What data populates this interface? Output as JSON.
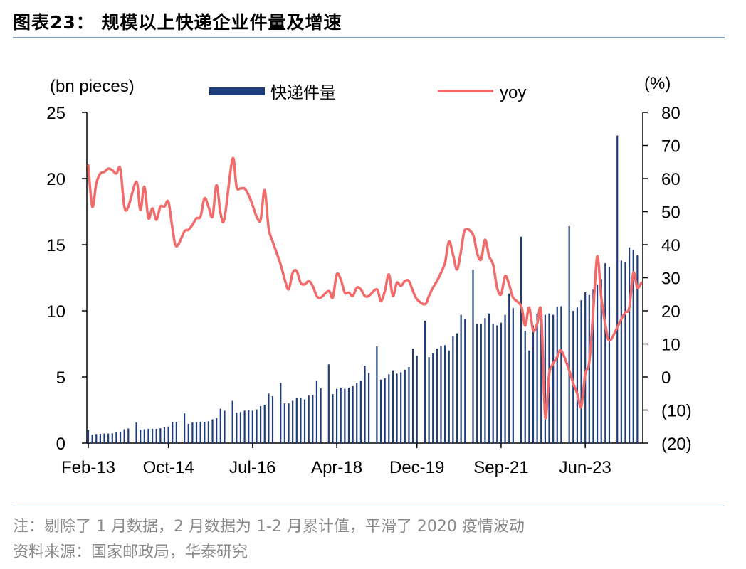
{
  "header": {
    "title": "图表23：   规模以上快递企业件量及增速"
  },
  "notes": {
    "note": "注：剔除了 1 月数据，2 月数据为 1-2 月累计值，平滑了 2020 疫情波动",
    "source": "资料来源：国家邮政局，华泰研究"
  },
  "colors": {
    "bar": "#1f3c7a",
    "line": "#f26b6b",
    "rule": "#7f9bb5"
  },
  "chart_data": {
    "type": "bar+line",
    "left_unit": "(bn pieces)",
    "right_unit": "(%)",
    "left_ylim": [
      0,
      25
    ],
    "right_ylim": [
      -20,
      80
    ],
    "left_ticks": [
      "0",
      "5",
      "10",
      "15",
      "20",
      "25"
    ],
    "right_ticks": [
      "(20)",
      "(10)",
      "0",
      "10",
      "20",
      "30",
      "40",
      "50",
      "60",
      "70",
      "80"
    ],
    "x_tick_labels": [
      "Feb-13",
      "Oct-14",
      "Jul-16",
      "Apr-18",
      "Dec-19",
      "Sep-21",
      "Jun-23"
    ],
    "x_tick_months": [
      "2013-02",
      "2014-10",
      "2016-07",
      "2018-04",
      "2019-12",
      "2021-09",
      "2023-06"
    ],
    "x_range": [
      "2013-02",
      "2024-08"
    ],
    "legend": {
      "position": "top",
      "bar_label": "快递件量",
      "line_label": "yoy"
    },
    "series": [
      {
        "name": "快递件量",
        "kind": "bar",
        "axis": "left",
        "values": [
          [
            "2013-02",
            1.0
          ],
          [
            "2013-03",
            0.65
          ],
          [
            "2013-04",
            0.68
          ],
          [
            "2013-05",
            0.7
          ],
          [
            "2013-06",
            0.72
          ],
          [
            "2013-07",
            0.72
          ],
          [
            "2013-08",
            0.74
          ],
          [
            "2013-09",
            0.8
          ],
          [
            "2013-10",
            0.85
          ],
          [
            "2013-11",
            1.05
          ],
          [
            "2013-12",
            1.1
          ],
          [
            "2014-02",
            1.55
          ],
          [
            "2014-03",
            1.0
          ],
          [
            "2014-04",
            1.05
          ],
          [
            "2014-05",
            1.08
          ],
          [
            "2014-06",
            1.08
          ],
          [
            "2014-07",
            1.08
          ],
          [
            "2014-08",
            1.12
          ],
          [
            "2014-09",
            1.2
          ],
          [
            "2014-10",
            1.25
          ],
          [
            "2014-11",
            1.6
          ],
          [
            "2014-12",
            1.6
          ],
          [
            "2015-02",
            2.25
          ],
          [
            "2015-03",
            1.45
          ],
          [
            "2015-04",
            1.55
          ],
          [
            "2015-05",
            1.58
          ],
          [
            "2015-06",
            1.6
          ],
          [
            "2015-07",
            1.6
          ],
          [
            "2015-08",
            1.65
          ],
          [
            "2015-09",
            1.8
          ],
          [
            "2015-10",
            1.9
          ],
          [
            "2015-11",
            2.6
          ],
          [
            "2015-12",
            2.45
          ],
          [
            "2016-02",
            3.2
          ],
          [
            "2016-03",
            2.3
          ],
          [
            "2016-04",
            2.35
          ],
          [
            "2016-05",
            2.45
          ],
          [
            "2016-06",
            2.5
          ],
          [
            "2016-07",
            2.45
          ],
          [
            "2016-08",
            2.55
          ],
          [
            "2016-09",
            2.8
          ],
          [
            "2016-10",
            2.9
          ],
          [
            "2016-11",
            3.75
          ],
          [
            "2016-12",
            3.55
          ],
          [
            "2017-02",
            4.55
          ],
          [
            "2017-03",
            3.0
          ],
          [
            "2017-04",
            3.0
          ],
          [
            "2017-05",
            3.2
          ],
          [
            "2017-06",
            3.4
          ],
          [
            "2017-07",
            3.4
          ],
          [
            "2017-08",
            3.3
          ],
          [
            "2017-09",
            3.6
          ],
          [
            "2017-10",
            3.65
          ],
          [
            "2017-11",
            4.7
          ],
          [
            "2017-12",
            4.15
          ],
          [
            "2018-02",
            5.95
          ],
          [
            "2018-03",
            3.7
          ],
          [
            "2018-04",
            4.1
          ],
          [
            "2018-05",
            4.2
          ],
          [
            "2018-06",
            4.1
          ],
          [
            "2018-07",
            4.2
          ],
          [
            "2018-08",
            4.3
          ],
          [
            "2018-09",
            4.55
          ],
          [
            "2018-10",
            4.7
          ],
          [
            "2018-11",
            5.85
          ],
          [
            "2018-12",
            5.3
          ],
          [
            "2019-02",
            7.3
          ],
          [
            "2019-03",
            4.8
          ],
          [
            "2019-04",
            4.9
          ],
          [
            "2019-05",
            5.2
          ],
          [
            "2019-06",
            5.5
          ],
          [
            "2019-07",
            5.25
          ],
          [
            "2019-08",
            5.35
          ],
          [
            "2019-09",
            5.55
          ],
          [
            "2019-10",
            5.75
          ],
          [
            "2019-11",
            7.15
          ],
          [
            "2019-12",
            6.6
          ],
          [
            "2020-02",
            9.25
          ],
          [
            "2020-03",
            6.5
          ],
          [
            "2020-04",
            6.8
          ],
          [
            "2020-05",
            7.15
          ],
          [
            "2020-06",
            7.35
          ],
          [
            "2020-07",
            7.4
          ],
          [
            "2020-08",
            7.0
          ],
          [
            "2020-09",
            8.1
          ],
          [
            "2020-10",
            8.3
          ],
          [
            "2020-11",
            9.7
          ],
          [
            "2020-12",
            9.4
          ],
          [
            "2021-02",
            13.1
          ],
          [
            "2021-03",
            9.0
          ],
          [
            "2021-04",
            9.0
          ],
          [
            "2021-05",
            9.45
          ],
          [
            "2021-06",
            9.8
          ],
          [
            "2021-07",
            9.0
          ],
          [
            "2021-08",
            8.9
          ],
          [
            "2021-09",
            9.1
          ],
          [
            "2021-10",
            9.7
          ],
          [
            "2021-11",
            11.3
          ],
          [
            "2021-12",
            10.2
          ],
          [
            "2022-02",
            15.6
          ],
          [
            "2022-03",
            8.5
          ],
          [
            "2022-04",
            7.0
          ],
          [
            "2022-05",
            8.9
          ],
          [
            "2022-06",
            9.8
          ],
          [
            "2022-07",
            10.25
          ],
          [
            "2022-08",
            9.7
          ],
          [
            "2022-09",
            9.8
          ],
          [
            "2022-10",
            9.7
          ],
          [
            "2022-11",
            10.3
          ],
          [
            "2022-12",
            10.35
          ],
          [
            "2023-02",
            16.4
          ],
          [
            "2023-03",
            10.0
          ],
          [
            "2023-04",
            10.25
          ],
          [
            "2023-05",
            10.8
          ],
          [
            "2023-06",
            11.4
          ],
          [
            "2023-07",
            11.2
          ],
          [
            "2023-08",
            11.6
          ],
          [
            "2023-09",
            12.0
          ],
          [
            "2023-10",
            12.4
          ],
          [
            "2023-11",
            13.6
          ],
          [
            "2023-12",
            13.3
          ],
          [
            "2024-02",
            23.25
          ],
          [
            "2024-03",
            13.8
          ],
          [
            "2024-04",
            13.7
          ],
          [
            "2024-05",
            14.8
          ],
          [
            "2024-06",
            14.6
          ],
          [
            "2024-07",
            14.2
          ]
        ]
      },
      {
        "name": "yoy",
        "kind": "line",
        "axis": "right",
        "values": [
          [
            "2013-02",
            64
          ],
          [
            "2013-03",
            51.5
          ],
          [
            "2013-04",
            58.5
          ],
          [
            "2013-05",
            61.5
          ],
          [
            "2013-06",
            62
          ],
          [
            "2013-07",
            63
          ],
          [
            "2013-08",
            62.5
          ],
          [
            "2013-09",
            61.5
          ],
          [
            "2013-10",
            63
          ],
          [
            "2013-11",
            51.5
          ],
          [
            "2013-12",
            51.5
          ],
          [
            "2014-02",
            59
          ],
          [
            "2014-03",
            50.5
          ],
          [
            "2014-04",
            57.5
          ],
          [
            "2014-05",
            48
          ],
          [
            "2014-06",
            51
          ],
          [
            "2014-07",
            47.5
          ],
          [
            "2014-08",
            51.5
          ],
          [
            "2014-09",
            51.5
          ],
          [
            "2014-10",
            53
          ],
          [
            "2014-11",
            45
          ],
          [
            "2014-12",
            39.5
          ],
          [
            "2015-02",
            44
          ],
          [
            "2015-03",
            44.5
          ],
          [
            "2015-04",
            46
          ],
          [
            "2015-05",
            48
          ],
          [
            "2015-06",
            48.5
          ],
          [
            "2015-07",
            54
          ],
          [
            "2015-08",
            51.5
          ],
          [
            "2015-09",
            48.5
          ],
          [
            "2015-10",
            58
          ],
          [
            "2015-11",
            49.5
          ],
          [
            "2015-12",
            48
          ],
          [
            "2016-02",
            66
          ],
          [
            "2016-03",
            57.5
          ],
          [
            "2016-04",
            57
          ],
          [
            "2016-05",
            57
          ],
          [
            "2016-06",
            55
          ],
          [
            "2016-07",
            52
          ],
          [
            "2016-08",
            48.5
          ],
          [
            "2016-09",
            47.5
          ],
          [
            "2016-10",
            56.5
          ],
          [
            "2016-11",
            45
          ],
          [
            "2016-12",
            41
          ],
          [
            "2017-02",
            34
          ],
          [
            "2017-03",
            29.5
          ],
          [
            "2017-04",
            26.5
          ],
          [
            "2017-05",
            31.5
          ],
          [
            "2017-06",
            32
          ],
          [
            "2017-07",
            28.5
          ],
          [
            "2017-08",
            28
          ],
          [
            "2017-09",
            29
          ],
          [
            "2017-10",
            27.5
          ],
          [
            "2017-11",
            24.5
          ],
          [
            "2017-12",
            24
          ],
          [
            "2018-02",
            26
          ],
          [
            "2018-03",
            24
          ],
          [
            "2018-04",
            31
          ],
          [
            "2018-05",
            29.5
          ],
          [
            "2018-06",
            25.5
          ],
          [
            "2018-07",
            25.5
          ],
          [
            "2018-08",
            24.5
          ],
          [
            "2018-09",
            27
          ],
          [
            "2018-10",
            26.5
          ],
          [
            "2018-11",
            24.5
          ],
          [
            "2018-12",
            24.5
          ],
          [
            "2019-02",
            26.5
          ],
          [
            "2019-03",
            23
          ],
          [
            "2019-04",
            26
          ],
          [
            "2019-05",
            31
          ],
          [
            "2019-06",
            24.5
          ],
          [
            "2019-07",
            28.5
          ],
          [
            "2019-08",
            27.5
          ],
          [
            "2019-09",
            29
          ],
          [
            "2019-10",
            29
          ],
          [
            "2019-11",
            26
          ],
          [
            "2019-12",
            23.5
          ],
          [
            "2020-02",
            22
          ],
          [
            "2020-03",
            24.5
          ],
          [
            "2020-04",
            27
          ],
          [
            "2020-05",
            29
          ],
          [
            "2020-06",
            31.5
          ],
          [
            "2020-07",
            34.5
          ],
          [
            "2020-08",
            41
          ],
          [
            "2020-09",
            37
          ],
          [
            "2020-10",
            32.5
          ],
          [
            "2020-11",
            38
          ],
          [
            "2020-12",
            44.5
          ],
          [
            "2021-02",
            43
          ],
          [
            "2021-03",
            37.5
          ],
          [
            "2021-04",
            35.5
          ],
          [
            "2021-05",
            41.5
          ],
          [
            "2021-06",
            36.5
          ],
          [
            "2021-07",
            34
          ],
          [
            "2021-08",
            27
          ],
          [
            "2021-09",
            25
          ],
          [
            "2021-10",
            30.5
          ],
          [
            "2021-11",
            28
          ],
          [
            "2021-12",
            24
          ],
          [
            "2022-02",
            21.5
          ],
          [
            "2022-03",
            15.5
          ],
          [
            "2022-04",
            21
          ],
          [
            "2022-05",
            14
          ],
          [
            "2022-06",
            16
          ],
          [
            "2022-07",
            19.5
          ],
          [
            "2022-08",
            -12
          ],
          [
            "2022-09",
            1
          ],
          [
            "2022-10",
            4
          ],
          [
            "2022-11",
            6
          ],
          [
            "2022-12",
            8
          ],
          [
            "2023-02",
            2
          ],
          [
            "2023-03",
            -2
          ],
          [
            "2023-04",
            -5
          ],
          [
            "2023-05",
            -9
          ],
          [
            "2023-06",
            1
          ],
          [
            "2023-07",
            4.5
          ],
          [
            "2023-08",
            20
          ],
          [
            "2023-09",
            36.5
          ],
          [
            "2023-10",
            24
          ],
          [
            "2023-11",
            16
          ],
          [
            "2023-12",
            11
          ],
          [
            "2024-02",
            15
          ],
          [
            "2024-03",
            17.5
          ],
          [
            "2024-04",
            19.5
          ],
          [
            "2024-05",
            21
          ],
          [
            "2024-06",
            31.5
          ],
          [
            "2024-07",
            27
          ],
          [
            "2024-08",
            28.5
          ]
        ]
      }
    ]
  }
}
